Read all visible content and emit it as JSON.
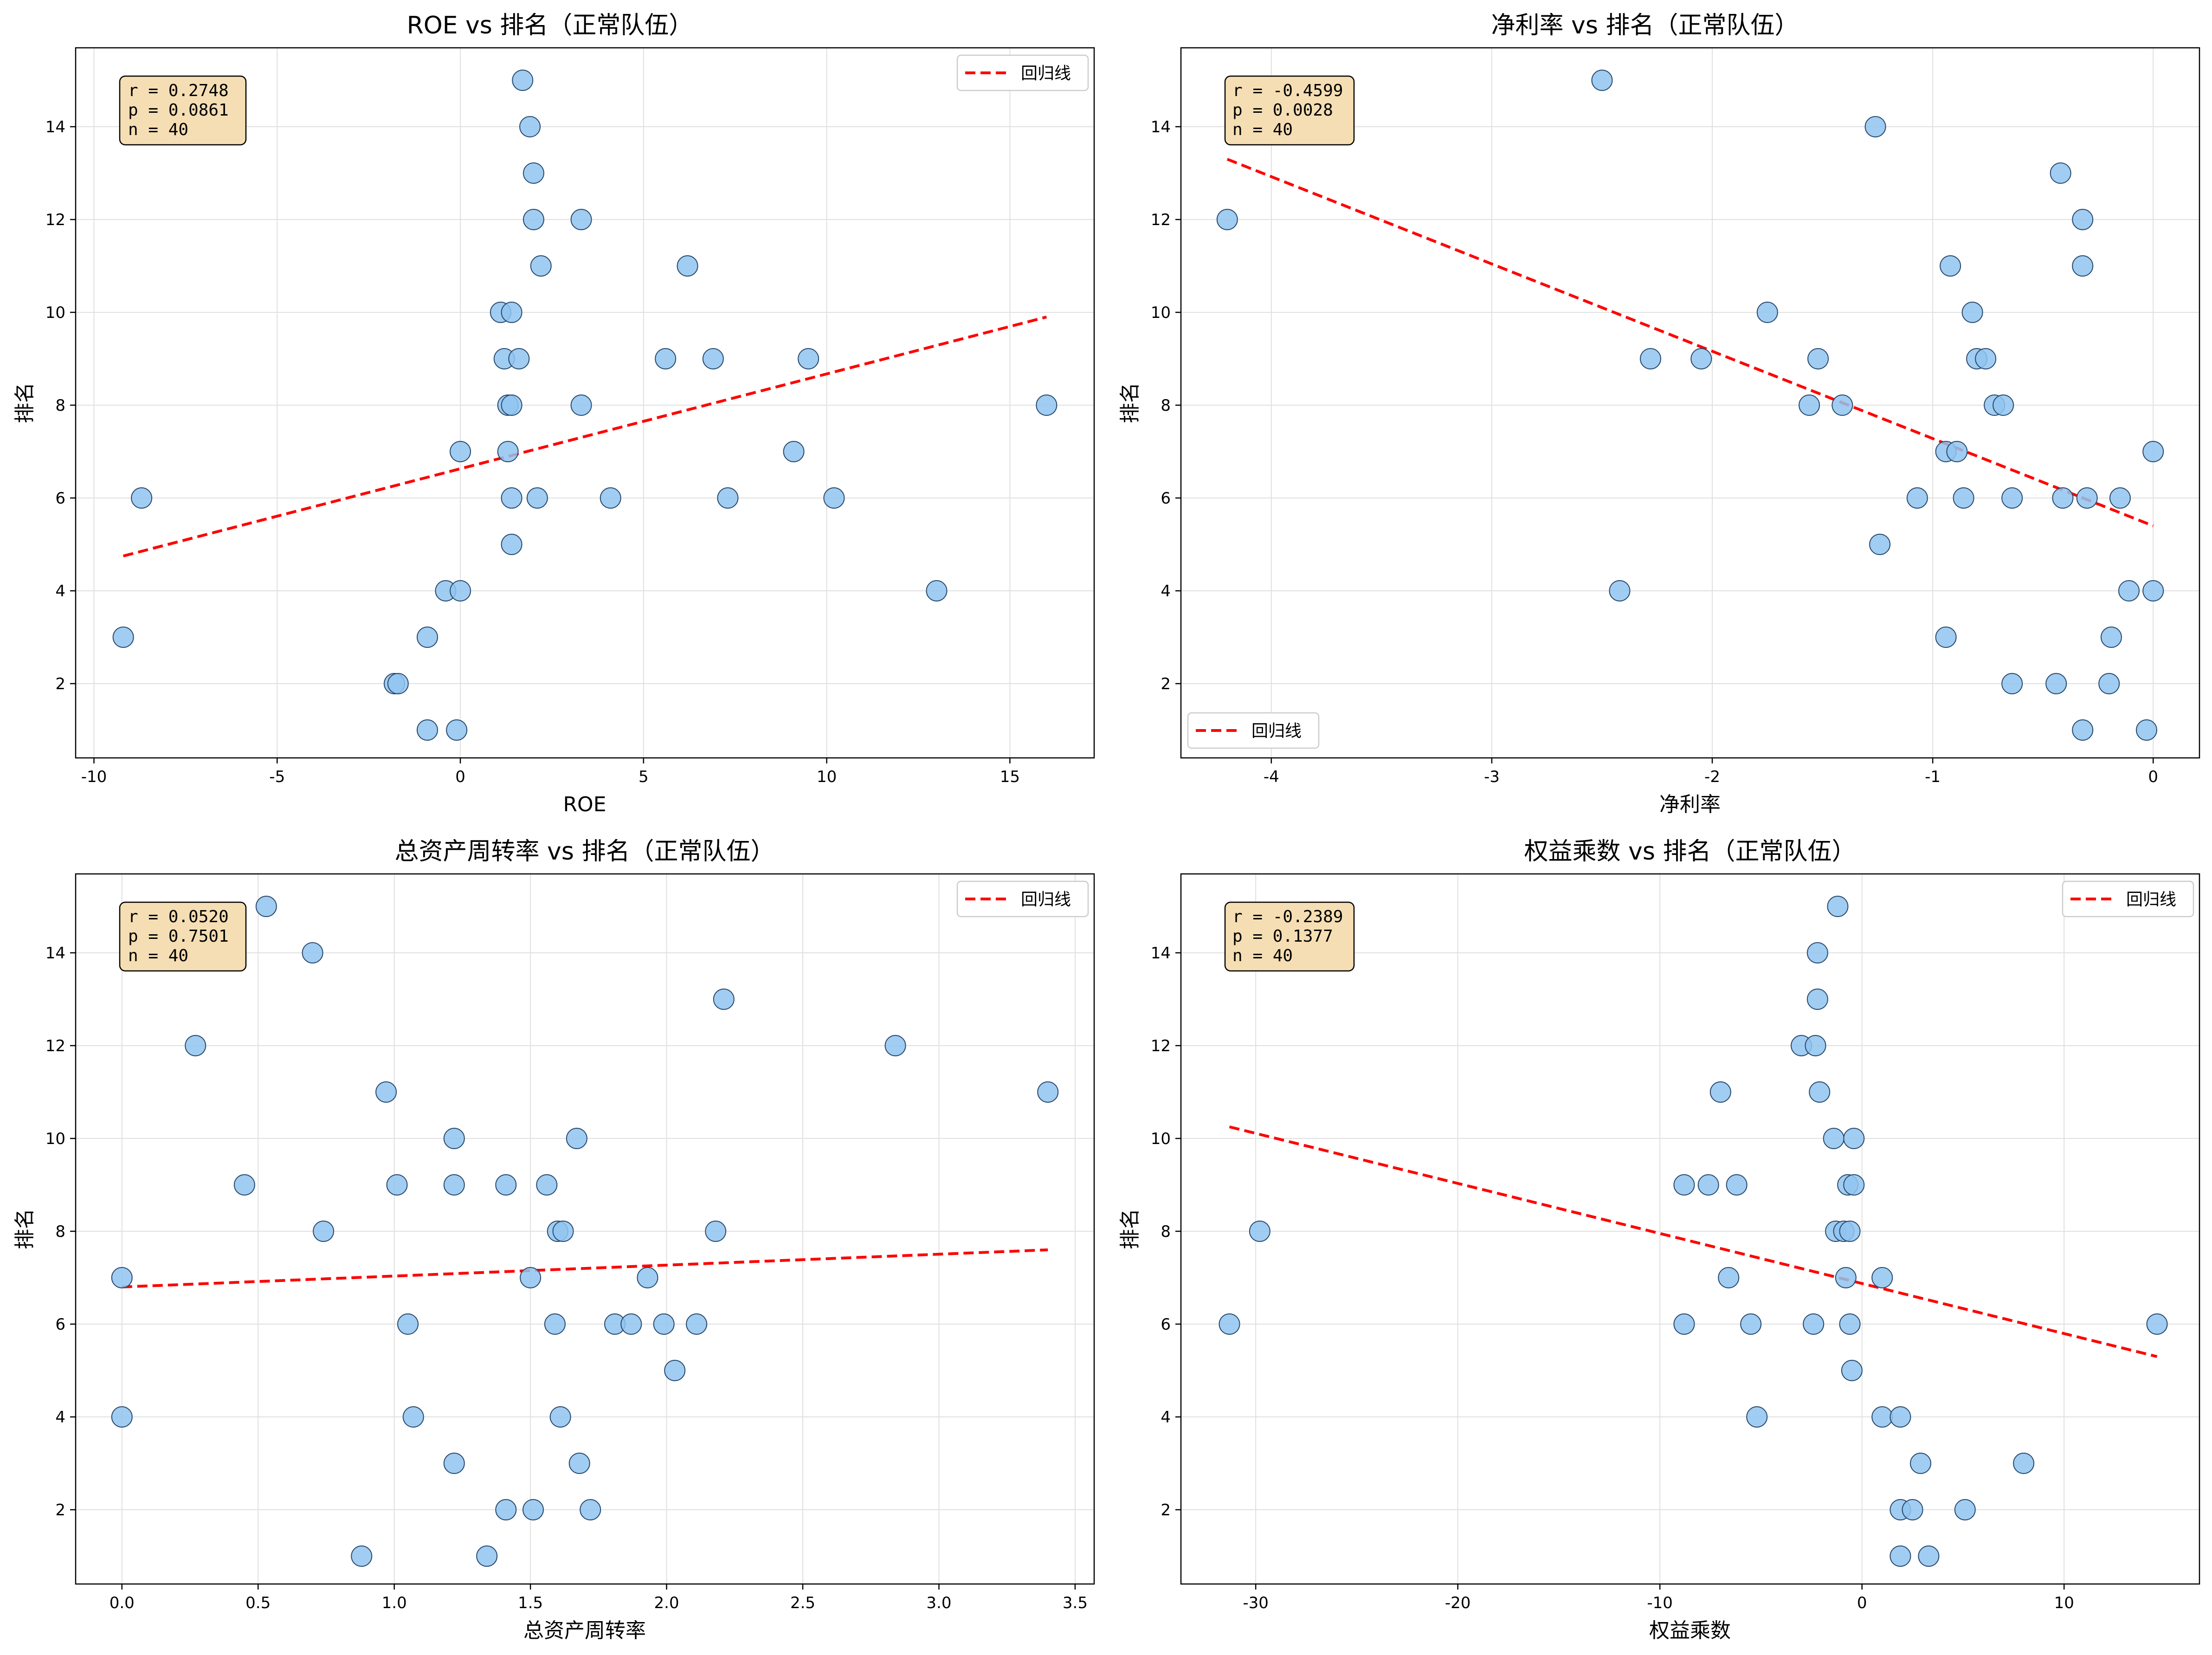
{
  "chart_data": [
    {
      "type": "scatter",
      "title": "ROE vs 排名（正常队伍）",
      "xlabel": "ROE",
      "ylabel": "排名",
      "xlim": [
        -10.5,
        17.3
      ],
      "ylim": [
        15.7,
        0.4
      ],
      "xticks": [
        -10,
        -5,
        0,
        5,
        10,
        15
      ],
      "yticks": [
        2,
        4,
        6,
        8,
        10,
        12,
        14
      ],
      "grid": true,
      "stats": [
        "r = 0.2748",
        "p = 0.0861",
        "n = 40"
      ],
      "legend": {
        "label": "回归线",
        "position": "top-right"
      },
      "regression": {
        "x": [
          -9.2,
          16.0
        ],
        "y": [
          4.75,
          9.9
        ]
      },
      "points": [
        {
          "x": -9.2,
          "y": 3
        },
        {
          "x": -8.7,
          "y": 6
        },
        {
          "x": -1.8,
          "y": 2
        },
        {
          "x": -1.7,
          "y": 2
        },
        {
          "x": -0.9,
          "y": 1
        },
        {
          "x": -0.9,
          "y": 3
        },
        {
          "x": -0.4,
          "y": 4
        },
        {
          "x": -0.1,
          "y": 1
        },
        {
          "x": 0.0,
          "y": 4
        },
        {
          "x": 0.0,
          "y": 7
        },
        {
          "x": 1.4,
          "y": 5
        },
        {
          "x": 1.4,
          "y": 6
        },
        {
          "x": 1.3,
          "y": 7
        },
        {
          "x": 1.3,
          "y": 8
        },
        {
          "x": 1.4,
          "y": 8
        },
        {
          "x": 1.2,
          "y": 9
        },
        {
          "x": 1.6,
          "y": 9
        },
        {
          "x": 1.1,
          "y": 10
        },
        {
          "x": 1.4,
          "y": 10
        },
        {
          "x": 2.1,
          "y": 6
        },
        {
          "x": 2.2,
          "y": 11
        },
        {
          "x": 2.0,
          "y": 12
        },
        {
          "x": 2.0,
          "y": 13
        },
        {
          "x": 1.9,
          "y": 14
        },
        {
          "x": 1.7,
          "y": 15
        },
        {
          "x": 3.3,
          "y": 8
        },
        {
          "x": 3.3,
          "y": 12
        },
        {
          "x": 4.1,
          "y": 6
        },
        {
          "x": 5.6,
          "y": 9
        },
        {
          "x": 6.2,
          "y": 11
        },
        {
          "x": 6.9,
          "y": 9
        },
        {
          "x": 7.3,
          "y": 6
        },
        {
          "x": 9.1,
          "y": 7
        },
        {
          "x": 9.5,
          "y": 9
        },
        {
          "x": 10.2,
          "y": 6
        },
        {
          "x": 13.0,
          "y": 4
        },
        {
          "x": 16.0,
          "y": 8
        }
      ]
    },
    {
      "type": "scatter",
      "title": "净利率 vs 排名（正常队伍）",
      "xlabel": "净利率",
      "ylabel": "排名",
      "xlim": [
        -4.41,
        0.21
      ],
      "ylim": [
        15.7,
        0.4
      ],
      "xticks": [
        -4,
        -3,
        -2,
        -1,
        0
      ],
      "yticks": [
        2,
        4,
        6,
        8,
        10,
        12,
        14
      ],
      "grid": true,
      "stats": [
        "r = -0.4599",
        "p = 0.0028",
        "n = 40"
      ],
      "legend": {
        "label": "回归线",
        "position": "lower-left"
      },
      "regression": {
        "x": [
          -4.2,
          0.0
        ],
        "y": [
          13.3,
          5.4
        ]
      },
      "points": [
        {
          "x": -4.2,
          "y": 12
        },
        {
          "x": -2.5,
          "y": 15
        },
        {
          "x": -2.42,
          "y": 4
        },
        {
          "x": -2.28,
          "y": 9
        },
        {
          "x": -2.05,
          "y": 9
        },
        {
          "x": -1.75,
          "y": 10
        },
        {
          "x": -1.56,
          "y": 8
        },
        {
          "x": -1.52,
          "y": 9
        },
        {
          "x": -1.41,
          "y": 8
        },
        {
          "x": -1.26,
          "y": 14
        },
        {
          "x": -1.24,
          "y": 5
        },
        {
          "x": -1.07,
          "y": 6
        },
        {
          "x": -0.94,
          "y": 3
        },
        {
          "x": -0.94,
          "y": 7
        },
        {
          "x": -0.92,
          "y": 11
        },
        {
          "x": -0.89,
          "y": 7
        },
        {
          "x": -0.86,
          "y": 6
        },
        {
          "x": -0.82,
          "y": 10
        },
        {
          "x": -0.8,
          "y": 9
        },
        {
          "x": -0.76,
          "y": 9
        },
        {
          "x": -0.72,
          "y": 8
        },
        {
          "x": -0.68,
          "y": 8
        },
        {
          "x": -0.64,
          "y": 2
        },
        {
          "x": -0.64,
          "y": 6
        },
        {
          "x": -0.44,
          "y": 2
        },
        {
          "x": -0.42,
          "y": 13
        },
        {
          "x": -0.41,
          "y": 6
        },
        {
          "x": -0.32,
          "y": 1
        },
        {
          "x": -0.32,
          "y": 11
        },
        {
          "x": -0.32,
          "y": 12
        },
        {
          "x": -0.3,
          "y": 6
        },
        {
          "x": -0.2,
          "y": 2
        },
        {
          "x": -0.19,
          "y": 3
        },
        {
          "x": -0.15,
          "y": 6
        },
        {
          "x": -0.11,
          "y": 4
        },
        {
          "x": -0.03,
          "y": 1
        },
        {
          "x": 0.0,
          "y": 4
        },
        {
          "x": 0.0,
          "y": 7
        }
      ]
    },
    {
      "type": "scatter",
      "title": "总资产周转率 vs 排名（正常队伍）",
      "xlabel": "总资产周转率",
      "ylabel": "排名",
      "xlim": [
        -0.17,
        3.57
      ],
      "ylim": [
        15.7,
        0.4
      ],
      "xticks": [
        0.0,
        0.5,
        1.0,
        1.5,
        2.0,
        2.5,
        3.0,
        3.5
      ],
      "xtick_labels": [
        "0.0",
        "0.5",
        "1.0",
        "1.5",
        "2.0",
        "2.5",
        "3.0",
        "3.5"
      ],
      "yticks": [
        2,
        4,
        6,
        8,
        10,
        12,
        14
      ],
      "grid": true,
      "stats": [
        "r = 0.0520",
        "p = 0.7501",
        "n = 40"
      ],
      "legend": {
        "label": "回归线",
        "position": "top-right"
      },
      "regression": {
        "x": [
          0.0,
          3.4
        ],
        "y": [
          6.8,
          7.6
        ]
      },
      "points": [
        {
          "x": 0.0,
          "y": 4
        },
        {
          "x": 0.0,
          "y": 7
        },
        {
          "x": 0.27,
          "y": 12
        },
        {
          "x": 0.45,
          "y": 9
        },
        {
          "x": 0.53,
          "y": 15
        },
        {
          "x": 0.7,
          "y": 14
        },
        {
          "x": 0.74,
          "y": 8
        },
        {
          "x": 0.88,
          "y": 1
        },
        {
          "x": 0.97,
          "y": 11
        },
        {
          "x": 1.01,
          "y": 9
        },
        {
          "x": 1.05,
          "y": 6
        },
        {
          "x": 1.07,
          "y": 4
        },
        {
          "x": 1.22,
          "y": 3
        },
        {
          "x": 1.22,
          "y": 9
        },
        {
          "x": 1.22,
          "y": 10
        },
        {
          "x": 1.34,
          "y": 1
        },
        {
          "x": 1.41,
          "y": 2
        },
        {
          "x": 1.41,
          "y": 9
        },
        {
          "x": 1.5,
          "y": 7
        },
        {
          "x": 1.51,
          "y": 2
        },
        {
          "x": 1.56,
          "y": 9
        },
        {
          "x": 1.59,
          "y": 6
        },
        {
          "x": 1.6,
          "y": 8
        },
        {
          "x": 1.61,
          "y": 4
        },
        {
          "x": 1.62,
          "y": 8
        },
        {
          "x": 1.67,
          "y": 10
        },
        {
          "x": 1.68,
          "y": 3
        },
        {
          "x": 1.72,
          "y": 2
        },
        {
          "x": 1.81,
          "y": 6
        },
        {
          "x": 1.87,
          "y": 6
        },
        {
          "x": 1.93,
          "y": 7
        },
        {
          "x": 1.99,
          "y": 6
        },
        {
          "x": 2.03,
          "y": 5
        },
        {
          "x": 2.11,
          "y": 6
        },
        {
          "x": 2.18,
          "y": 8
        },
        {
          "x": 2.21,
          "y": 13
        },
        {
          "x": 2.84,
          "y": 12
        },
        {
          "x": 3.4,
          "y": 11
        }
      ]
    },
    {
      "type": "scatter",
      "title": "权益乘数 vs 排名（正常队伍）",
      "xlabel": "权益乘数",
      "ylabel": "排名",
      "xlim": [
        -33.7,
        16.7
      ],
      "ylim": [
        15.7,
        0.4
      ],
      "xticks": [
        -30,
        -20,
        -10,
        0,
        10
      ],
      "yticks": [
        2,
        4,
        6,
        8,
        10,
        12,
        14
      ],
      "grid": true,
      "stats": [
        "r = -0.2389",
        "p = 0.1377",
        "n = 40"
      ],
      "legend": {
        "label": "回归线",
        "position": "top-right"
      },
      "regression": {
        "x": [
          -31.3,
          14.6
        ],
        "y": [
          10.25,
          5.3
        ]
      },
      "points": [
        {
          "x": -31.3,
          "y": 6
        },
        {
          "x": -29.8,
          "y": 8
        },
        {
          "x": -8.8,
          "y": 6
        },
        {
          "x": -8.8,
          "y": 9
        },
        {
          "x": -7.6,
          "y": 9
        },
        {
          "x": -7.0,
          "y": 11
        },
        {
          "x": -6.6,
          "y": 7
        },
        {
          "x": -6.2,
          "y": 9
        },
        {
          "x": -5.5,
          "y": 6
        },
        {
          "x": -5.2,
          "y": 4
        },
        {
          "x": -3.0,
          "y": 12
        },
        {
          "x": -2.4,
          "y": 6
        },
        {
          "x": -2.3,
          "y": 12
        },
        {
          "x": -2.2,
          "y": 13
        },
        {
          "x": -2.2,
          "y": 14
        },
        {
          "x": -2.1,
          "y": 11
        },
        {
          "x": -1.4,
          "y": 10
        },
        {
          "x": -1.3,
          "y": 8
        },
        {
          "x": -1.2,
          "y": 15
        },
        {
          "x": -0.9,
          "y": 8
        },
        {
          "x": -0.8,
          "y": 7
        },
        {
          "x": -0.7,
          "y": 9
        },
        {
          "x": -0.6,
          "y": 6
        },
        {
          "x": -0.6,
          "y": 8
        },
        {
          "x": -0.5,
          "y": 5
        },
        {
          "x": -0.4,
          "y": 9
        },
        {
          "x": -0.4,
          "y": 10
        },
        {
          "x": 1.0,
          "y": 4
        },
        {
          "x": 1.0,
          "y": 7
        },
        {
          "x": 1.9,
          "y": 1
        },
        {
          "x": 1.9,
          "y": 2
        },
        {
          "x": 1.9,
          "y": 4
        },
        {
          "x": 2.5,
          "y": 2
        },
        {
          "x": 2.9,
          "y": 3
        },
        {
          "x": 3.3,
          "y": 1
        },
        {
          "x": 5.1,
          "y": 2
        },
        {
          "x": 8.0,
          "y": 3
        },
        {
          "x": 14.6,
          "y": 6
        }
      ]
    }
  ],
  "colors": {
    "point_fill": "#90c4f0",
    "point_stroke": "#2a4a6e",
    "regression": "#ff0000",
    "stats_box_fill": "#f5deb3",
    "grid": "#e0e0e0"
  }
}
